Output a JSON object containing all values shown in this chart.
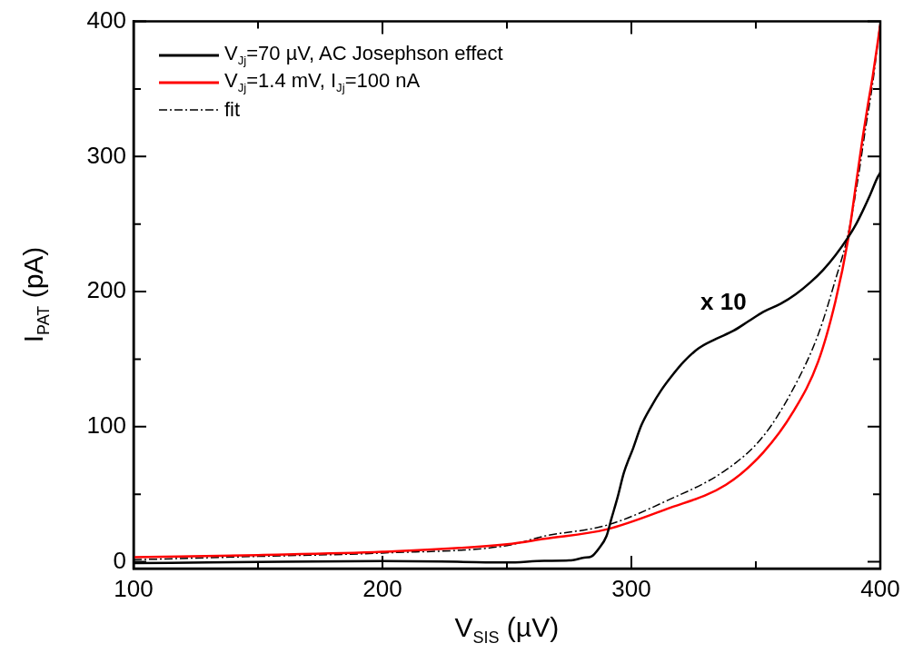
{
  "chart_data": {
    "type": "line",
    "xlabel": "V$_{SIS}$ (µV)",
    "ylabel": "I$_{PAT}$ (pA)",
    "xlim": [
      100,
      400
    ],
    "ylim": [
      -5,
      400
    ],
    "xticks": [
      100,
      {
        "value": 150,
        "label": null
      },
      200,
      {
        "value": 250,
        "label": null
      },
      300,
      {
        "value": 350,
        "label": null
      },
      400
    ],
    "yticks": [
      0,
      {
        "value": 50,
        "label": null
      },
      100,
      {
        "value": 150,
        "label": null
      },
      200,
      {
        "value": 250,
        "label": null
      },
      300,
      {
        "value": 350,
        "label": null
      },
      400
    ],
    "grid": false,
    "legend": "top left",
    "marker": "none",
    "annotations": [
      "x 10"
    ],
    "series": [
      {
        "name": "V$_{Jj}$=70 µV, AC Josephson effect",
        "color": "#000000",
        "line_style": "solid",
        "x": [
          100,
          130,
          160,
          200,
          230,
          250,
          265,
          275,
          281,
          284,
          287,
          290,
          292,
          294.5,
          297,
          300.7,
          304,
          308,
          312,
          316,
          321,
          327,
          334,
          341,
          347,
          353,
          360,
          366,
          372,
          377,
          382,
          387,
          390,
          393,
          396,
          399,
          400
        ],
        "values": [
          -1,
          -0.5,
          0,
          0.5,
          0,
          -0.5,
          0.7,
          1,
          3,
          4,
          10,
          19,
          32,
          48,
          66,
          84,
          101,
          115,
          127,
          137,
          148,
          158,
          165,
          171,
          178,
          185,
          191,
          198,
          207,
          216,
          227,
          240,
          249,
          260,
          272,
          285,
          288
        ]
      },
      {
        "name": "V$_{Jj}$=1.4 mV, I$_{Jj}$=100 nA",
        "color": "#ff0000",
        "line_style": "solid",
        "x": [
          100,
          150,
          200,
          250,
          265,
          290,
          314,
          338,
          353,
          365,
          375,
          382,
          387,
          390.5,
          393,
          395,
          397,
          399,
          400
        ],
        "values": [
          3.4,
          5,
          7.4,
          13,
          17,
          24,
          39,
          57,
          81,
          111,
          148,
          193,
          238,
          283,
          315,
          338,
          360,
          385,
          398
        ]
      },
      {
        "name": "fit",
        "color": "#000000",
        "line_style": "dashed",
        "x": [
          100,
          150,
          200,
          250,
          265,
          290,
          314,
          338,
          353,
          365,
          375,
          382,
          387,
          391,
          394,
          397,
          400
        ],
        "values": [
          1.5,
          4,
          6.5,
          12,
          19,
          27,
          45,
          68,
          93,
          128,
          168,
          209,
          242,
          283,
          320,
          355,
          400
        ]
      }
    ]
  }
}
